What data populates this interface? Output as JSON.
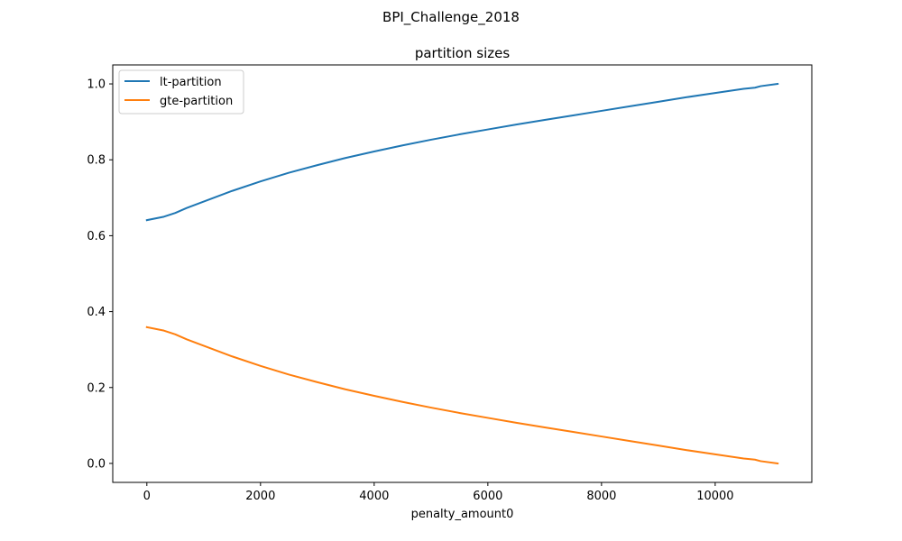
{
  "figure_title": "BPI_Challenge_2018",
  "chart_data": {
    "type": "line",
    "title": "partition sizes",
    "xlabel": "penalty_amount0",
    "ylabel": "",
    "xlim": [
      -600,
      11700
    ],
    "ylim": [
      -0.05,
      1.05
    ],
    "xticks": [
      0,
      2000,
      4000,
      6000,
      8000,
      10000
    ],
    "xtick_labels": [
      "0",
      "2000",
      "4000",
      "6000",
      "8000",
      "10000"
    ],
    "yticks": [
      0.0,
      0.2,
      0.4,
      0.6,
      0.8,
      1.0
    ],
    "ytick_labels": [
      "0.0",
      "0.2",
      "0.4",
      "0.6",
      "0.8",
      "1.0"
    ],
    "grid": false,
    "legend_position": "top-left",
    "x": [
      0,
      300,
      500,
      700,
      1000,
      1500,
      2000,
      2500,
      3000,
      3500,
      4000,
      4500,
      5000,
      5500,
      6000,
      6500,
      7000,
      7500,
      8000,
      8500,
      9000,
      9500,
      10000,
      10500,
      10700,
      10800,
      11100
    ],
    "series": [
      {
        "name": "lt-partition",
        "color": "#1f77b4",
        "values": [
          0.641,
          0.65,
          0.66,
          0.673,
          0.69,
          0.718,
          0.743,
          0.766,
          0.786,
          0.805,
          0.822,
          0.838,
          0.853,
          0.867,
          0.88,
          0.893,
          0.905,
          0.917,
          0.929,
          0.941,
          0.953,
          0.965,
          0.976,
          0.987,
          0.99,
          0.994,
          1.0
        ]
      },
      {
        "name": "gte-partition",
        "color": "#ff7f0e",
        "values": [
          0.359,
          0.35,
          0.34,
          0.327,
          0.31,
          0.282,
          0.257,
          0.234,
          0.214,
          0.195,
          0.178,
          0.162,
          0.147,
          0.133,
          0.12,
          0.107,
          0.095,
          0.083,
          0.071,
          0.059,
          0.047,
          0.035,
          0.024,
          0.013,
          0.01,
          0.006,
          0.0
        ]
      }
    ]
  }
}
